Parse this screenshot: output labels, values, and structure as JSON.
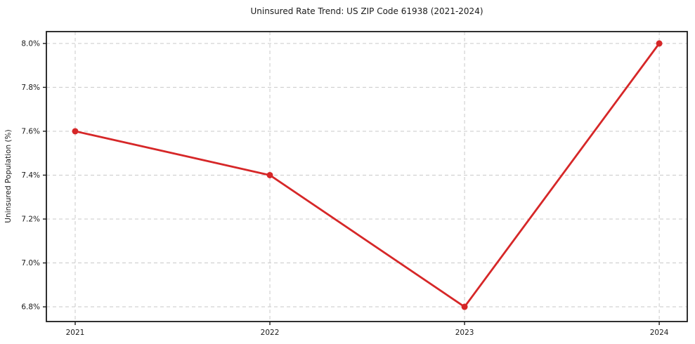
{
  "title": "Uninsured Rate Trend: US ZIP Code 61938 (2021-2024)",
  "chart_data": {
    "type": "line",
    "title": "Uninsured Rate Trend: US ZIP Code 61938 (2021-2024)",
    "xlabel": "",
    "ylabel": "Uninsured Population (%)",
    "categories": [
      "2021",
      "2022",
      "2023",
      "2024"
    ],
    "x": [
      2021,
      2022,
      2023,
      2024
    ],
    "series": [
      {
        "name": "Uninsured Rate",
        "values": [
          7.6,
          7.4,
          6.8,
          8.0
        ]
      }
    ],
    "yticks": [
      6.8,
      7.0,
      7.2,
      7.4,
      7.6,
      7.8,
      8.0
    ],
    "ytick_labels": [
      "6.8%",
      "7.0%",
      "7.2%",
      "7.4%",
      "7.6%",
      "7.8%",
      "8.0%"
    ],
    "xlim": [
      2020.852,
      2024.144
    ],
    "ylim": [
      6.733,
      8.054
    ],
    "grid": true,
    "legend": "none",
    "line_color": "#d62728",
    "marker": "circle",
    "grid_color": "#c9c9c9",
    "spine_color": "#1a1a1a",
    "background_color": "#ffffff"
  }
}
